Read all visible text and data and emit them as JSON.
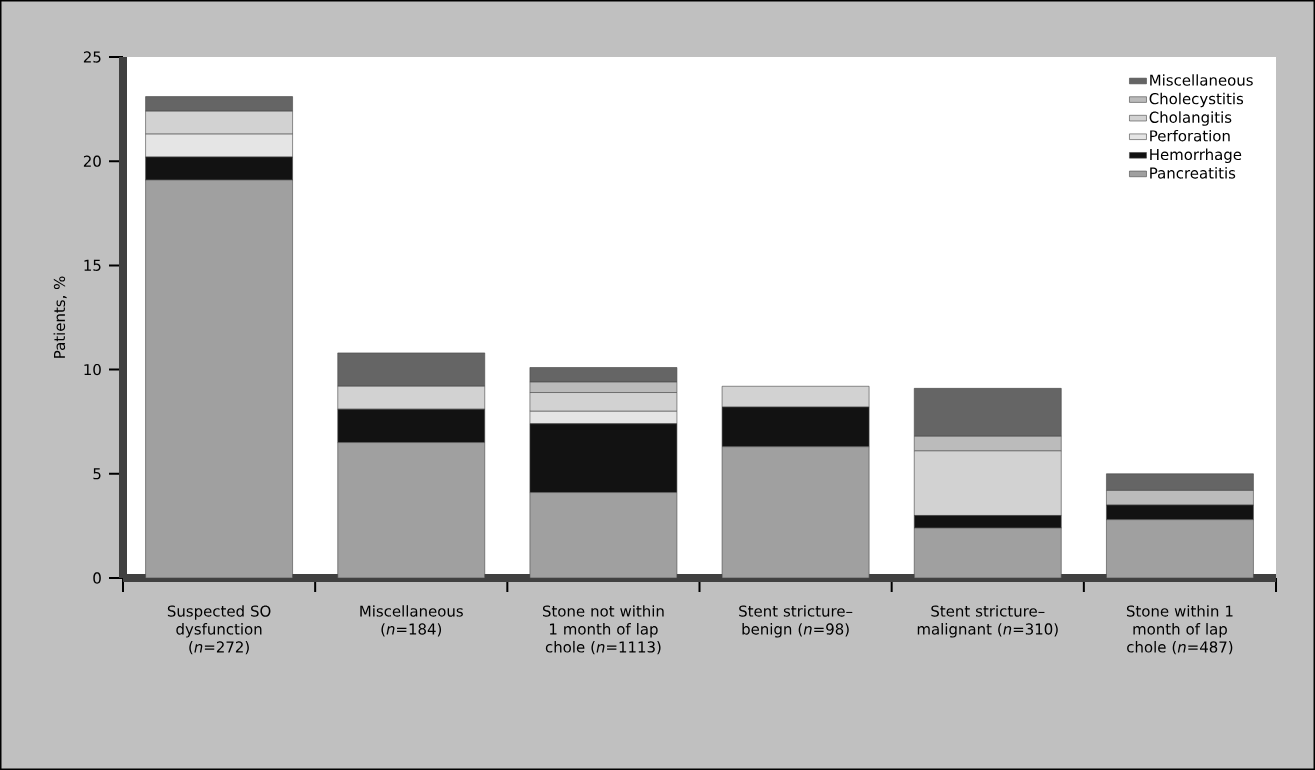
{
  "chart_data": {
    "type": "bar",
    "stacked": true,
    "ylabel": "Patients, %",
    "categories": [
      "Suspected SO dysfunction (*n*=272)",
      "Miscellaneous (*n*=184)",
      "Stone not within 1 month of lap chole (*n*=1113)",
      "Stent stricture–benign (*n*=98)",
      "Stent stricture–malignant (*n*=310)",
      "Stone within 1 month of lap chole (*n*=487)"
    ],
    "series": [
      {
        "name": "Pancreatitis",
        "color": "#a0a0a0",
        "values": [
          19.1,
          6.5,
          4.1,
          6.3,
          2.4,
          2.8
        ]
      },
      {
        "name": "Hemorrhage",
        "color": "#121212",
        "values": [
          1.1,
          1.6,
          3.3,
          1.9,
          0.6,
          0.7
        ]
      },
      {
        "name": "Perforation",
        "color": "#e5e5e5",
        "values": [
          1.1,
          0,
          0.6,
          0,
          0,
          0
        ]
      },
      {
        "name": "Cholangitis",
        "color": "#d2d2d2",
        "values": [
          1.1,
          1.1,
          0.9,
          1.0,
          3.1,
          0
        ]
      },
      {
        "name": "Cholecystitis",
        "color": "#bbbbbb",
        "values": [
          0,
          0,
          0.5,
          0,
          0.7,
          0.7
        ]
      },
      {
        "name": "Miscellaneous",
        "color": "#656565",
        "values": [
          0.7,
          1.6,
          0.7,
          0,
          2.3,
          0.8
        ]
      }
    ],
    "ylim": [
      0,
      25
    ],
    "yticks": [
      0,
      5,
      10,
      15,
      20,
      25
    ],
    "legend": "top right",
    "grid": false
  }
}
